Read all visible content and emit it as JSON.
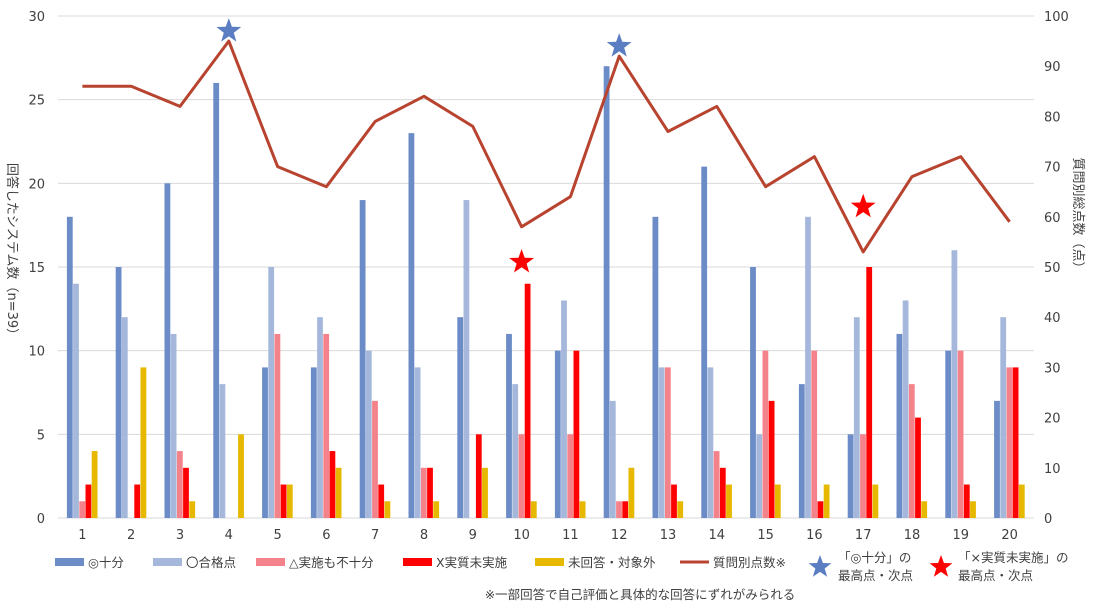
{
  "chart_data": {
    "type": "bar",
    "categories": [
      "1",
      "2",
      "3",
      "4",
      "5",
      "6",
      "7",
      "8",
      "9",
      "10",
      "11",
      "12",
      "13",
      "14",
      "15",
      "16",
      "17",
      "18",
      "19",
      "20"
    ],
    "ylabel": "回答したシステム数（n=39）",
    "y2label": "質問別総点数（点）",
    "ylim": [
      0,
      30
    ],
    "y2lim": [
      0,
      100
    ],
    "yticks": [
      "0",
      "5",
      "10",
      "15",
      "20",
      "25",
      "30"
    ],
    "y2ticks": [
      "0",
      "10",
      "20",
      "30",
      "40",
      "50",
      "60",
      "70",
      "80",
      "90",
      "100"
    ],
    "grid": true,
    "legend_position": "bottom",
    "series": [
      {
        "name": "◎十分",
        "color": "#6b8cc7",
        "axis": "left",
        "kind": "bar",
        "values": [
          18,
          15,
          20,
          26,
          9,
          9,
          19,
          23,
          12,
          11,
          10,
          27,
          18,
          21,
          15,
          8,
          5,
          11,
          10,
          7
        ]
      },
      {
        "name": "〇合格点",
        "color": "#a5b8dc",
        "axis": "left",
        "kind": "bar",
        "values": [
          14,
          12,
          11,
          8,
          15,
          12,
          10,
          9,
          19,
          8,
          13,
          7,
          9,
          9,
          5,
          18,
          12,
          13,
          16,
          12
        ]
      },
      {
        "name": "△実施も不十分",
        "color": "#f4828a",
        "axis": "left",
        "kind": "bar",
        "values": [
          1,
          0,
          4,
          0,
          11,
          11,
          7,
          3,
          0,
          5,
          5,
          1,
          9,
          4,
          10,
          10,
          5,
          8,
          10,
          9
        ]
      },
      {
        "name": "X実質未実施",
        "color": "#ff0000",
        "axis": "left",
        "kind": "bar",
        "values": [
          2,
          2,
          3,
          0,
          2,
          4,
          2,
          3,
          5,
          14,
          10,
          1,
          2,
          3,
          7,
          1,
          15,
          6,
          2,
          9
        ]
      },
      {
        "name": "未回答・対象外",
        "color": "#e6b800",
        "axis": "left",
        "kind": "bar",
        "values": [
          4,
          9,
          1,
          5,
          2,
          3,
          1,
          1,
          3,
          1,
          1,
          3,
          1,
          2,
          2,
          2,
          2,
          1,
          1,
          2
        ]
      },
      {
        "name": "質問別点数※",
        "color": "#b8432f",
        "axis": "right",
        "kind": "line",
        "values": [
          86,
          86,
          82,
          95,
          70,
          66,
          79,
          84,
          78,
          58,
          64,
          92,
          77,
          82,
          66,
          72,
          53,
          68,
          72,
          59
        ]
      }
    ],
    "markers": [
      {
        "legend": "「◎十分」の\n最高点・次点",
        "color": "#5b7ec2",
        "points": [
          {
            "x": "4",
            "y2": 97
          },
          {
            "x": "12",
            "y2": 94
          }
        ]
      },
      {
        "legend": "「×実質未実施」の\n最高点・次点",
        "color": "#ff0000",
        "points": [
          {
            "x": "10",
            "y2": 51
          },
          {
            "x": "17",
            "y2": 62
          }
        ]
      }
    ],
    "legend": {
      "items": [
        "◎十分",
        "〇合格点",
        "△実施も不十分",
        "X実質未実施",
        "未回答・対象外",
        "質問別点数※"
      ],
      "marker_blue_line1": "「◎十分」の",
      "marker_blue_line2": "最高点・次点",
      "marker_red_line1": "「×実質未実施」の",
      "marker_red_line2": "最高点・次点"
    },
    "footnote": "※一部回答で自己評価と具体的な回答にずれがみられる"
  }
}
